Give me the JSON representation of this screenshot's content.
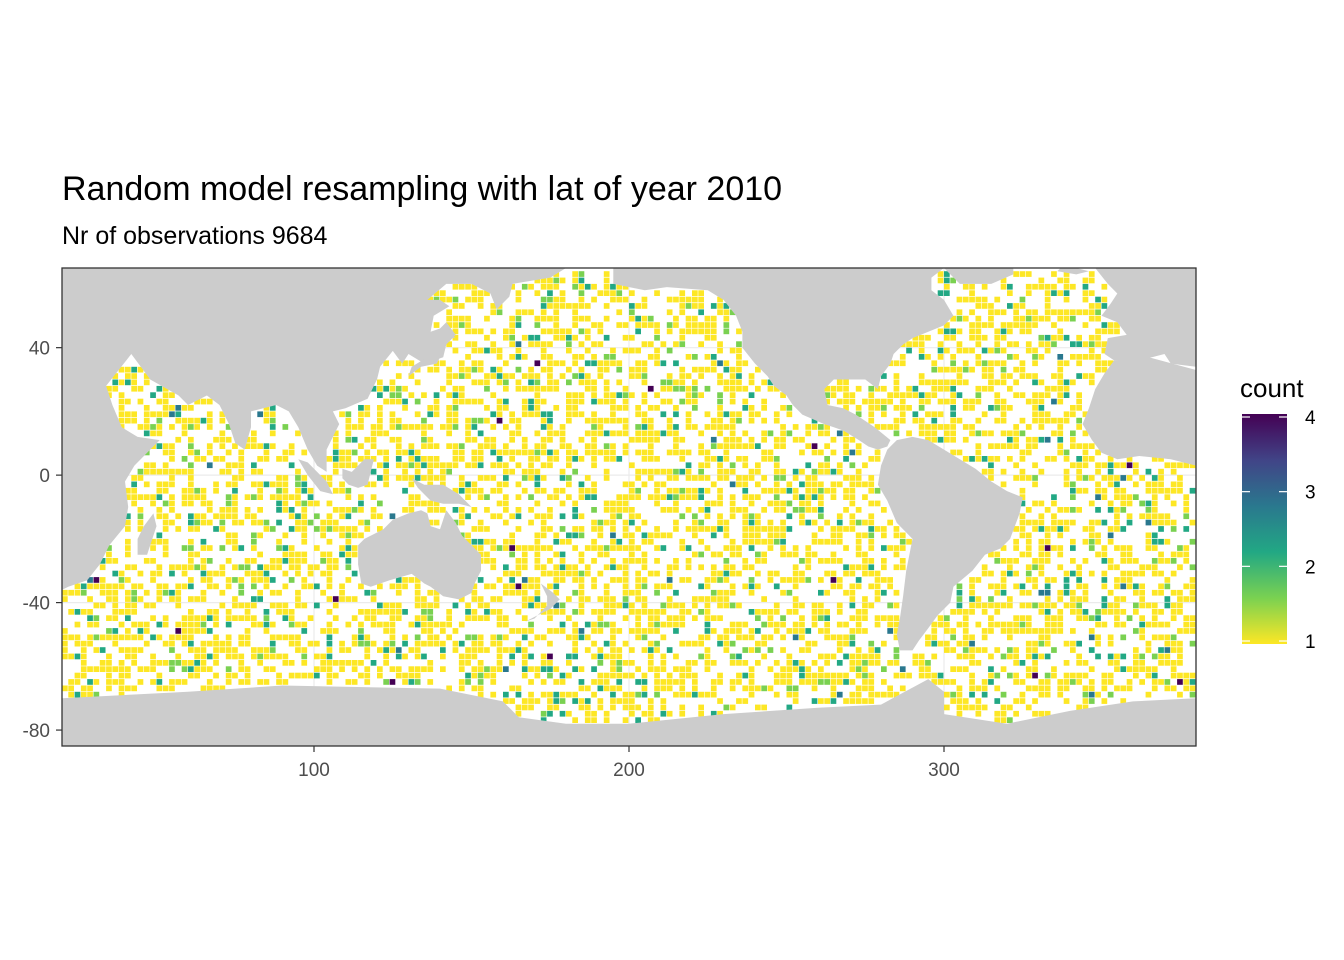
{
  "title": "Random model resampling with lat of year 2010",
  "subtitle": "Nr of observations 9684",
  "chart_data": {
    "type": "heatmap",
    "xlim": [
      20,
      380
    ],
    "ylim": [
      -85,
      65
    ],
    "x_ticks": [
      100,
      200,
      300
    ],
    "y_ticks": [
      40,
      0,
      -40,
      -80
    ],
    "grid": true,
    "land_color": "#cccccc",
    "ocean_color": "#ffffff",
    "legend": {
      "title": "count",
      "placement": "right",
      "ticks": [
        1,
        2,
        3,
        4
      ],
      "colors": [
        "#fde725",
        "#7ad151",
        "#22a884",
        "#2a788e",
        "#414487",
        "#440154"
      ]
    }
  }
}
